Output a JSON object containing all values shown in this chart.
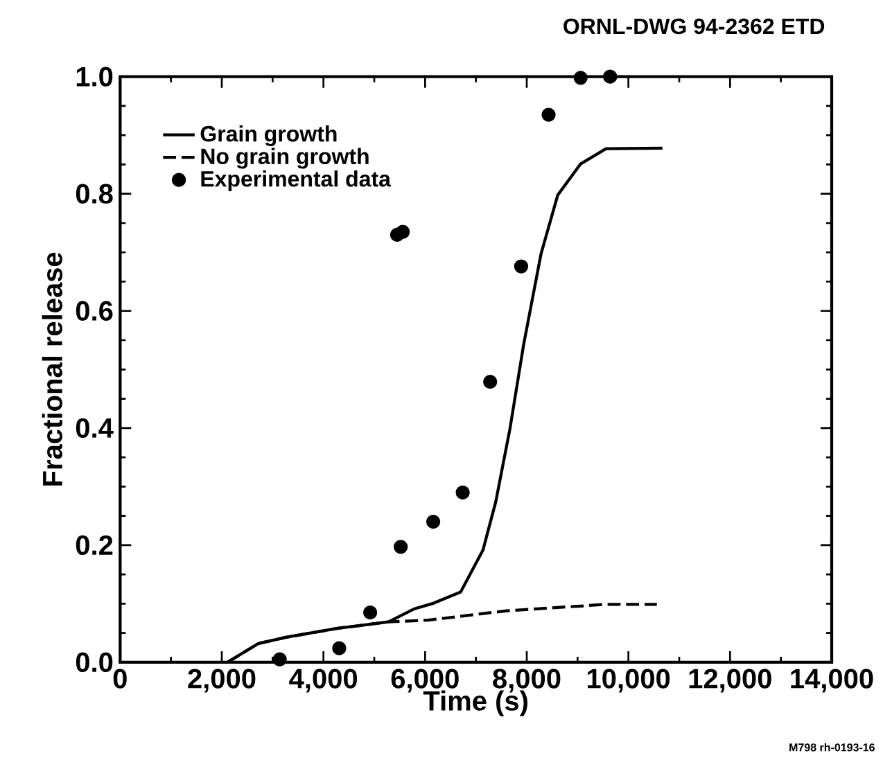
{
  "chart_data": {
    "type": "line",
    "xlabel": "Time (s)",
    "ylabel": "Fractional release",
    "annotations": [
      "ORNL-DWG 94-2362 ETD",
      "M798 rh-0193-16"
    ],
    "xlim": [
      0,
      14000
    ],
    "ylim": [
      0,
      1.0
    ],
    "xticks": [
      0,
      {
        "value": 2000,
        "label": "2,000"
      },
      {
        "value": 4000,
        "label": "4,000"
      },
      {
        "value": 6000,
        "label": "6,000"
      },
      {
        "value": 8000,
        "label": "8,000"
      },
      {
        "value": 10000,
        "label": "10,000"
      },
      {
        "value": 12000,
        "label": "12,000"
      },
      {
        "value": 14000,
        "label": "14,000"
      }
    ],
    "yticks": [
      {
        "value": 0,
        "label": "0.0"
      },
      0.2,
      0.4,
      0.6,
      0.8,
      {
        "value": 1.0,
        "label": "1.0"
      }
    ],
    "legend": "top left",
    "grid": false,
    "series": [
      {
        "name": "Grain growth",
        "color": "#000000",
        "line_style": "solid",
        "marker": "none",
        "x": [
          2110,
          2720,
          3280,
          4280,
          5280,
          5780,
          6170,
          6700,
          7140,
          7390,
          7670,
          7940,
          8280,
          8610,
          9060,
          9560,
          10670
        ],
        "values": [
          0,
          0.032,
          0.043,
          0.058,
          0.069,
          0.091,
          0.101,
          0.12,
          0.192,
          0.274,
          0.399,
          0.543,
          0.697,
          0.798,
          0.851,
          0.877,
          0.878
        ]
      },
      {
        "name": "No grain growth",
        "color": "#000000",
        "line_style": "dashed",
        "marker": "none",
        "x": [
          2110,
          2720,
          3280,
          4280,
          5280,
          6060,
          7610,
          9060,
          9560,
          10560
        ],
        "values": [
          0,
          0.032,
          0.043,
          0.058,
          0.069,
          0.072,
          0.088,
          0.096,
          0.099,
          0.099
        ]
      },
      {
        "name": "Experimental data",
        "type": "scatter",
        "color": "#000000",
        "marker": "circle",
        "x": [
          3140,
          4310,
          4920,
          5520,
          5450,
          5560,
          6160,
          6740,
          7280,
          7890,
          8430,
          9060,
          9640
        ],
        "values": [
          0.005,
          0.024,
          0.085,
          0.197,
          0.73,
          0.735,
          0.24,
          0.29,
          0.479,
          0.676,
          0.935,
          0.998,
          1.0
        ]
      }
    ]
  }
}
